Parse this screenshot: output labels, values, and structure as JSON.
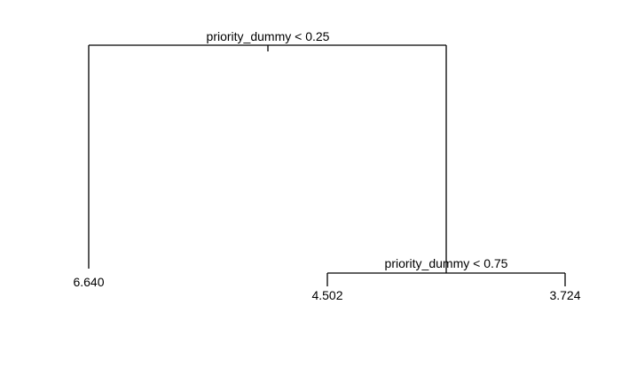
{
  "tree": {
    "root_split": "priority_dummy < 0.25",
    "left_leaf": "6.640",
    "right_split": "priority_dummy < 0.75",
    "right_left_leaf": "4.502",
    "right_right_leaf": "3.724"
  }
}
